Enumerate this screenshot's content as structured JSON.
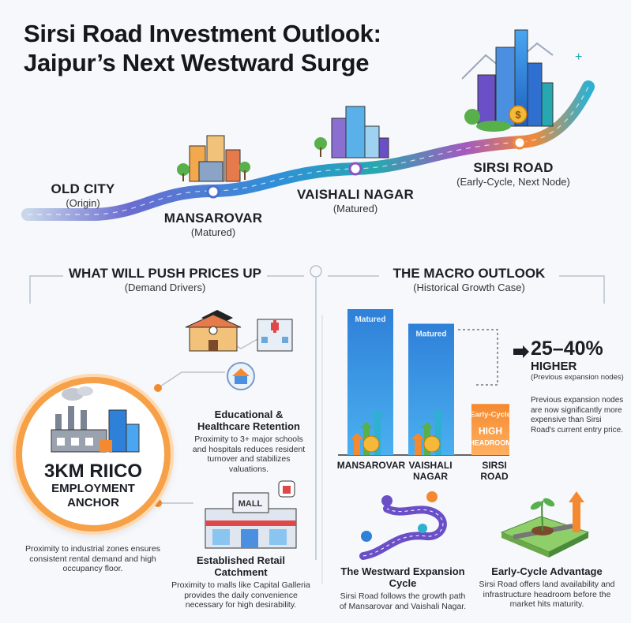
{
  "title_line1": "Sirsi Road Investment Outlook:",
  "title_line2": "Jaipur’s Next Westward Surge",
  "route": {
    "old_city": {
      "name": "OLD CITY",
      "sub": "(Origin)"
    },
    "mansarovar": {
      "name": "MANSAROVAR",
      "sub": "(Matured)"
    },
    "vaishali": {
      "name": "VAISHALI NAGAR",
      "sub": "(Matured)"
    },
    "sirsi": {
      "name": "SIRSI ROAD",
      "sub": "(Early-Cycle, Next Node)"
    }
  },
  "drivers": {
    "heading": "WHAT WILL PUSH PRICES UP",
    "sub": "(Demand Drivers)",
    "anchor": {
      "line1": "3KM RIICO",
      "line2": "EMPLOYMENT",
      "line3": "ANCHOR",
      "desc": "Proximity to industrial zones ensures consistent rental demand and high occupancy floor."
    },
    "education": {
      "title": "Educational & Healthcare Retention",
      "desc": "Proximity to 3+ major schools and hospitals reduces resident turnover and stabilizes valuations."
    },
    "retail": {
      "title": "Established Retail Catchment",
      "desc": "Proximity to malls like Capital Galleria provides the daily convenience necessary for high desirability.",
      "sign": "MALL"
    }
  },
  "macro": {
    "heading": "THE MACRO OUTLOOK",
    "sub": "(Historical Growth Case)",
    "stat": "25–40%",
    "stat_label": "HIGHER",
    "stat_sub": "(Previous expansion nodes)",
    "stat_desc": "Previous expansion nodes are now significantly more expensive than Sirsi Road's current entry price."
  },
  "chart_data": {
    "type": "bar",
    "categories": [
      "MANSAROVAR",
      "VAISHALI NAGAR",
      "SIRSI ROAD"
    ],
    "bar_texts": [
      "Matured",
      "Matured",
      "Early-Cycle"
    ],
    "sirsi_badge": {
      "line1": "HIGH",
      "line2": "HEADROOM"
    },
    "values": [
      100,
      90,
      35
    ],
    "ylim": [
      0,
      100
    ],
    "colors": [
      "#2f80d8",
      "#2f80d8",
      "#f5892f"
    ]
  },
  "cycle": {
    "title": "The Westward Expansion Cycle",
    "desc": "Sirsi Road follows the growth path of Mansarovar and Vaishali Nagar."
  },
  "advantage": {
    "title": "Early-Cycle Advantage",
    "desc": "Sirsi Road offers land availability and infrastructure headroom before the market hits maturity."
  },
  "colors": {
    "orange": "#f5892f",
    "blue": "#2f80d8",
    "purple": "#6a4fc7",
    "teal": "#27a8b0",
    "green": "#57b04a"
  }
}
